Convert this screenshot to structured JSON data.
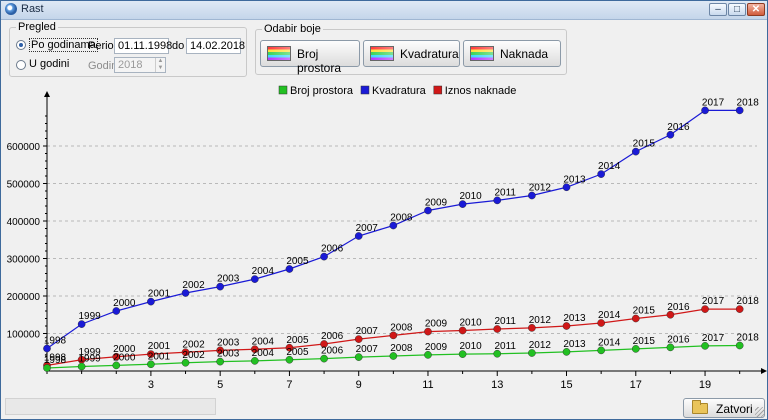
{
  "window": {
    "title": "Rast",
    "min_glyph": "–",
    "max_glyph": "□",
    "close_glyph": "✕"
  },
  "pregled": {
    "label": "Pregled",
    "po_godinama": "Po godinama",
    "u_godini": "U godini",
    "period_label": "Period:",
    "date_from": "01.11.1998",
    "do_label": "do",
    "date_to": "14.02.2018",
    "godina_label": "Godina:",
    "godina_value": "2018",
    "selected": "po_godinama"
  },
  "odabir": {
    "label": "Odabir boje",
    "buttons": [
      "Broj prostora",
      "Kvadratura",
      "Naknada"
    ]
  },
  "close_button": "Zatvori",
  "chart_data": {
    "type": "line",
    "legend": [
      {
        "name": "Broj prostora",
        "color": "#22c022"
      },
      {
        "name": "Kvadratura",
        "color": "#1a1ad6"
      },
      {
        "name": "Iznos naknade",
        "color": "#d01818"
      }
    ],
    "x": [
      0,
      1,
      2,
      3,
      4,
      5,
      6,
      7,
      8,
      9,
      10,
      11,
      12,
      13,
      14,
      15,
      16,
      17,
      18,
      19,
      20
    ],
    "xlim": [
      0,
      20.5
    ],
    "xticks": [
      3,
      5,
      7,
      9,
      11,
      13,
      15,
      17,
      19
    ],
    "ylim": [
      0,
      720000
    ],
    "yticks": [
      100000,
      200000,
      300000,
      400000,
      500000,
      600000
    ],
    "series": [
      {
        "name": "Kvadratura",
        "color": "#1a1ad6",
        "values": [
          60000,
          125000,
          160000,
          185000,
          208000,
          225000,
          245000,
          272000,
          305000,
          360000,
          388000,
          428000,
          445000,
          455000,
          468000,
          490000,
          525000,
          585000,
          630000,
          695000,
          695000
        ],
        "labels": [
          "1998",
          "1999",
          "2000",
          "2001",
          "2002",
          "2003",
          "2004",
          "2005",
          "2006",
          "2007",
          "2008",
          "2009",
          "2010",
          "2011",
          "2012",
          "2013",
          "2014",
          "2015",
          "2016",
          "2017",
          "2018"
        ]
      },
      {
        "name": "Iznos naknade",
        "color": "#d01818",
        "values": [
          15000,
          30000,
          38000,
          45000,
          50000,
          55000,
          58000,
          62000,
          72000,
          85000,
          95000,
          105000,
          108000,
          112000,
          115000,
          120000,
          128000,
          140000,
          150000,
          165000,
          165000
        ],
        "labels": [
          "1998",
          "1999",
          "2000",
          "2001",
          "2002",
          "2003",
          "2004",
          "2005",
          "2006",
          "2007",
          "2008",
          "2009",
          "2010",
          "2011",
          "2012",
          "2013",
          "2014",
          "2015",
          "2016",
          "2017",
          "2018"
        ]
      },
      {
        "name": "Broj prostora",
        "color": "#22c022",
        "values": [
          8000,
          12000,
          15000,
          18000,
          22000,
          25000,
          27000,
          30000,
          33000,
          37000,
          40000,
          43000,
          45000,
          46000,
          48000,
          51000,
          55000,
          59000,
          63000,
          67000,
          68000
        ],
        "labels": [
          "1998",
          "1999",
          "2000",
          "2001",
          "2002",
          "2003",
          "2004",
          "2005",
          "2006",
          "2007",
          "2008",
          "2009",
          "2010",
          "2011",
          "2012",
          "2013",
          "2014",
          "2015",
          "2016",
          "2017",
          "2018"
        ]
      }
    ]
  }
}
